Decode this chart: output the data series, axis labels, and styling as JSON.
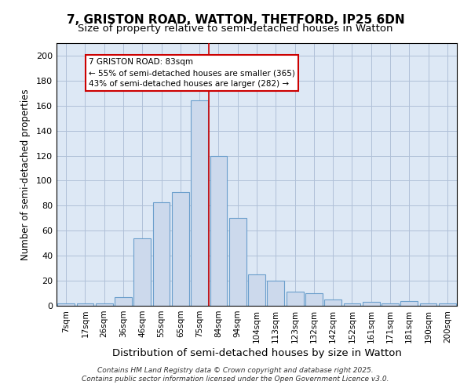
{
  "title": "7, GRISTON ROAD, WATTON, THETFORD, IP25 6DN",
  "subtitle": "Size of property relative to semi-detached houses in Watton",
  "xlabel": "Distribution of semi-detached houses by size in Watton",
  "ylabel": "Number of semi-detached properties",
  "bar_labels": [
    "7sqm",
    "17sqm",
    "26sqm",
    "36sqm",
    "46sqm",
    "55sqm",
    "65sqm",
    "75sqm",
    "84sqm",
    "94sqm",
    "104sqm",
    "113sqm",
    "123sqm",
    "132sqm",
    "142sqm",
    "152sqm",
    "161sqm",
    "171sqm",
    "181sqm",
    "190sqm",
    "200sqm"
  ],
  "bar_values": [
    2,
    2,
    2,
    7,
    54,
    83,
    91,
    164,
    120,
    70,
    25,
    20,
    11,
    10,
    5,
    2,
    3,
    2,
    4,
    2,
    2
  ],
  "bar_color": "#ccd9ec",
  "bar_edge_color": "#6b9fcc",
  "vline_color": "#cc0000",
  "annotation_title": "7 GRISTON ROAD: 83sqm",
  "annotation_line1": "← 55% of semi-detached houses are smaller (365)",
  "annotation_line2": "43% of semi-detached houses are larger (282) →",
  "annotation_box_edge": "#cc0000",
  "ylim": [
    0,
    210
  ],
  "yticks": [
    0,
    20,
    40,
    60,
    80,
    100,
    120,
    140,
    160,
    180,
    200
  ],
  "footer1": "Contains HM Land Registry data © Crown copyright and database right 2025.",
  "footer2": "Contains public sector information licensed under the Open Government Licence v3.0.",
  "bg_color": "#ffffff",
  "plot_bg_color": "#dde8f5",
  "grid_color": "#b0c0d8"
}
